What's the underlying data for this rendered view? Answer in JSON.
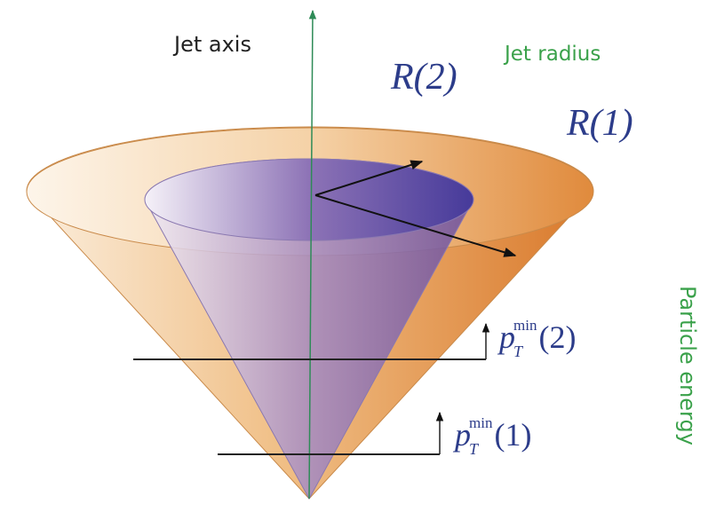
{
  "labels": {
    "jet_axis": "Jet axis",
    "jet_radius": "Jet radius",
    "r2": "R(2)",
    "r1": "R(1)",
    "particle_energy": "Particle energy"
  },
  "thresholds": [
    {
      "symbol": "p",
      "subscript": "T",
      "superscript": "min",
      "argument": "(2)"
    },
    {
      "symbol": "p",
      "subscript": "T",
      "superscript": "min",
      "argument": "(1)"
    }
  ]
}
